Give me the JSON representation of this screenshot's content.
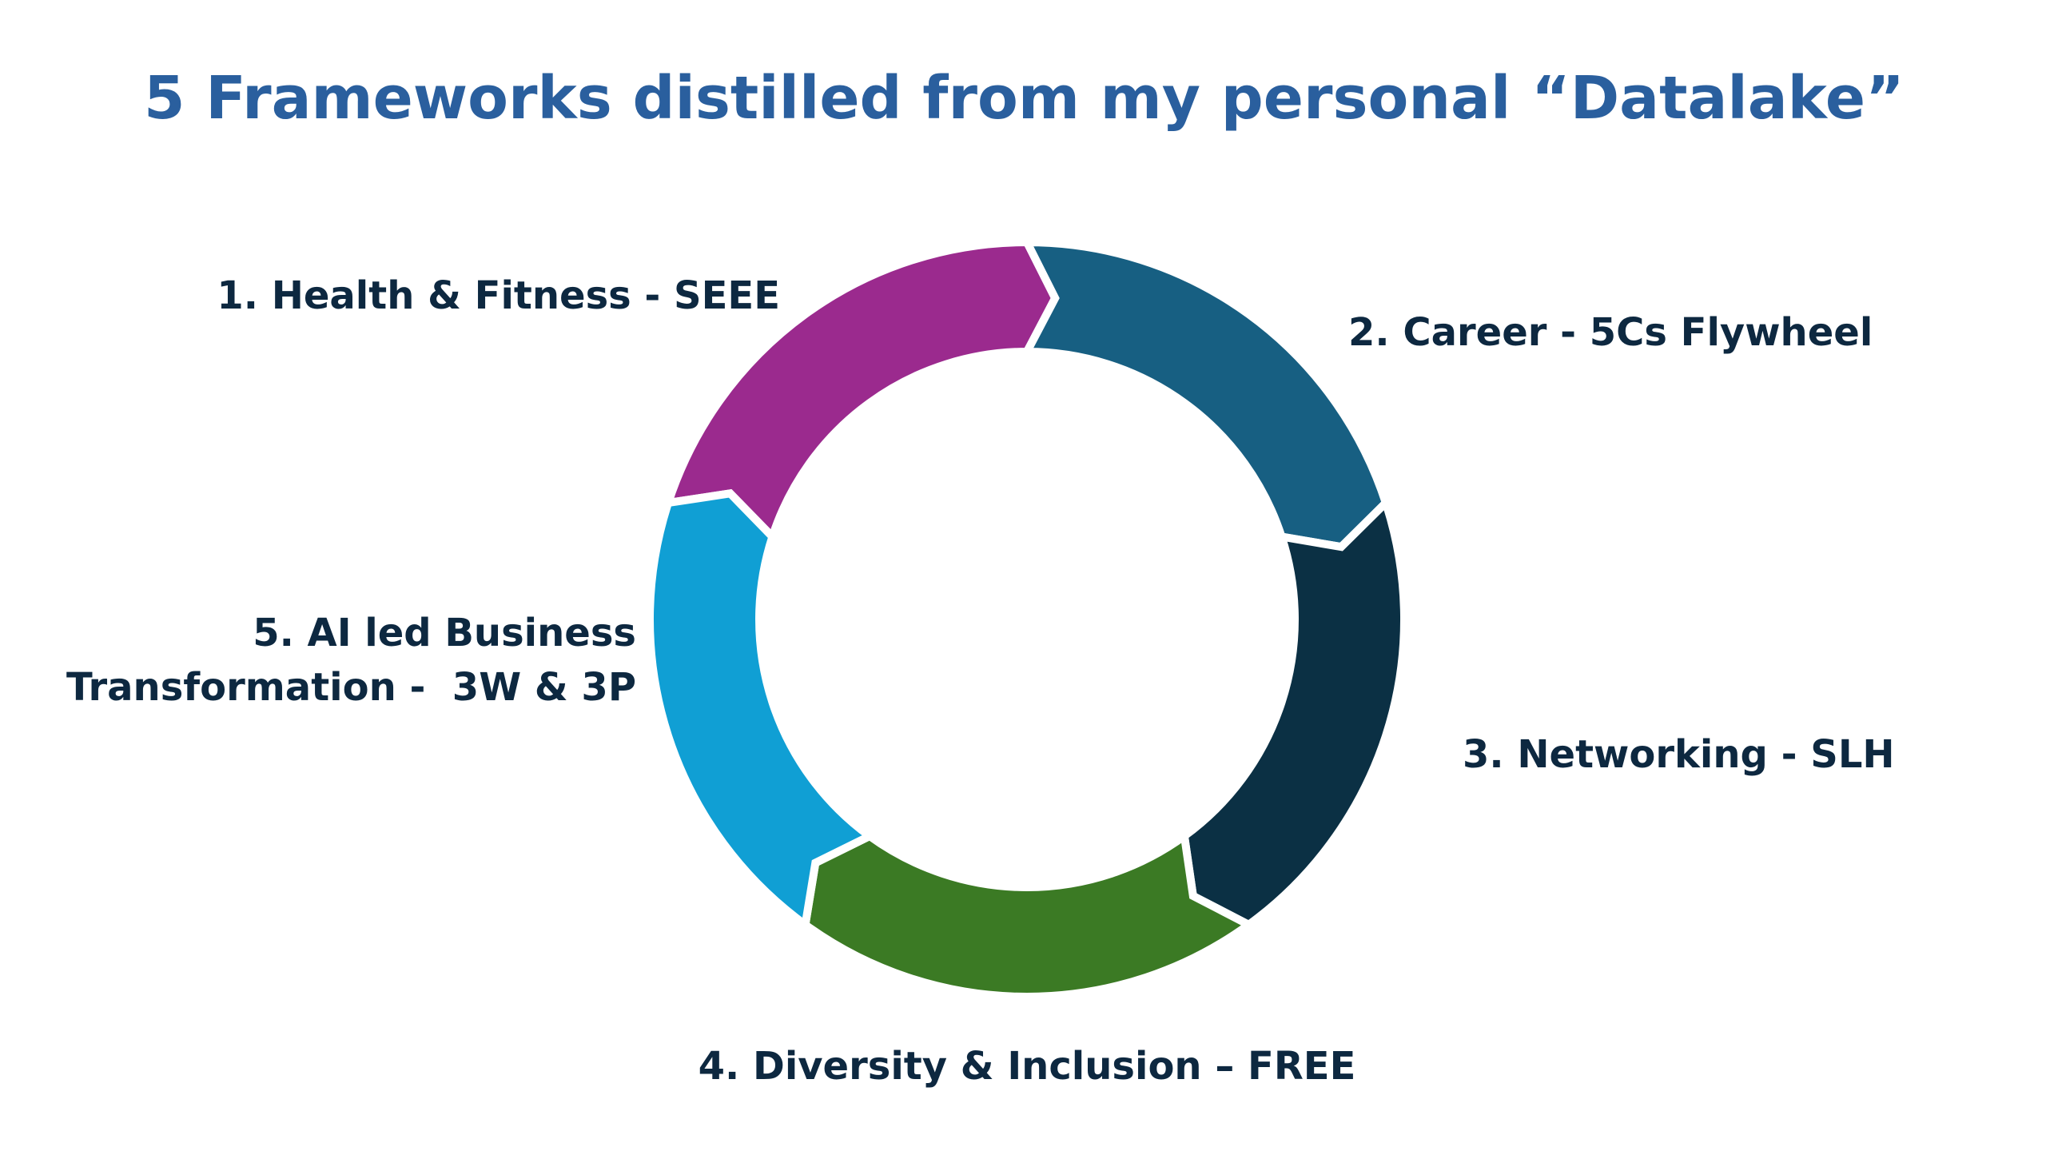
{
  "title": "5 Frameworks distilled from my personal “Datalake”",
  "nodes": [
    {
      "label": "1. Health & Fitness - SEEE"
    },
    {
      "label": "2. Career - 5Cs Flywheel"
    },
    {
      "label": "3. Networking - SLH"
    },
    {
      "label": "4. Diversity & Inclusion – FREE"
    },
    {
      "label_lines": [
        "5. AI led Business",
        "Transformation -  3W & 3P"
      ]
    }
  ]
}
